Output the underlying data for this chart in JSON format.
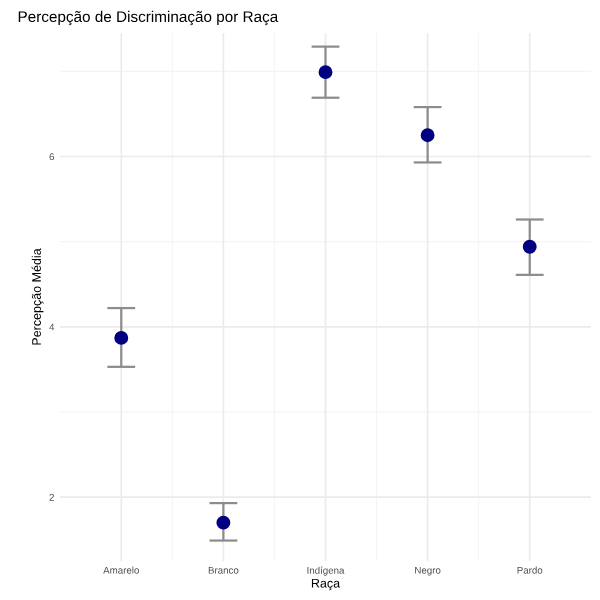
{
  "chart_data": {
    "type": "scatter",
    "title": "Percepção de Discriminação por Raça",
    "xlabel": "Raça",
    "ylabel": "Percepção Média",
    "categories": [
      "Amarelo",
      "Branco",
      "Indígena",
      "Negro",
      "Pardo"
    ],
    "series": [
      {
        "color": "#000080",
        "values": [
          3.87,
          1.7,
          6.99,
          6.25,
          4.94
        ],
        "errors": [
          [
            3.53,
            4.22
          ],
          [
            1.49,
            1.93
          ],
          [
            6.69,
            7.29
          ],
          [
            5.93,
            6.58
          ],
          [
            4.61,
            5.26
          ]
        ]
      }
    ],
    "ylim": [
      1.25,
      7.45
    ],
    "yticks": [
      2,
      4,
      6
    ],
    "grid": true,
    "marker": "circle"
  }
}
